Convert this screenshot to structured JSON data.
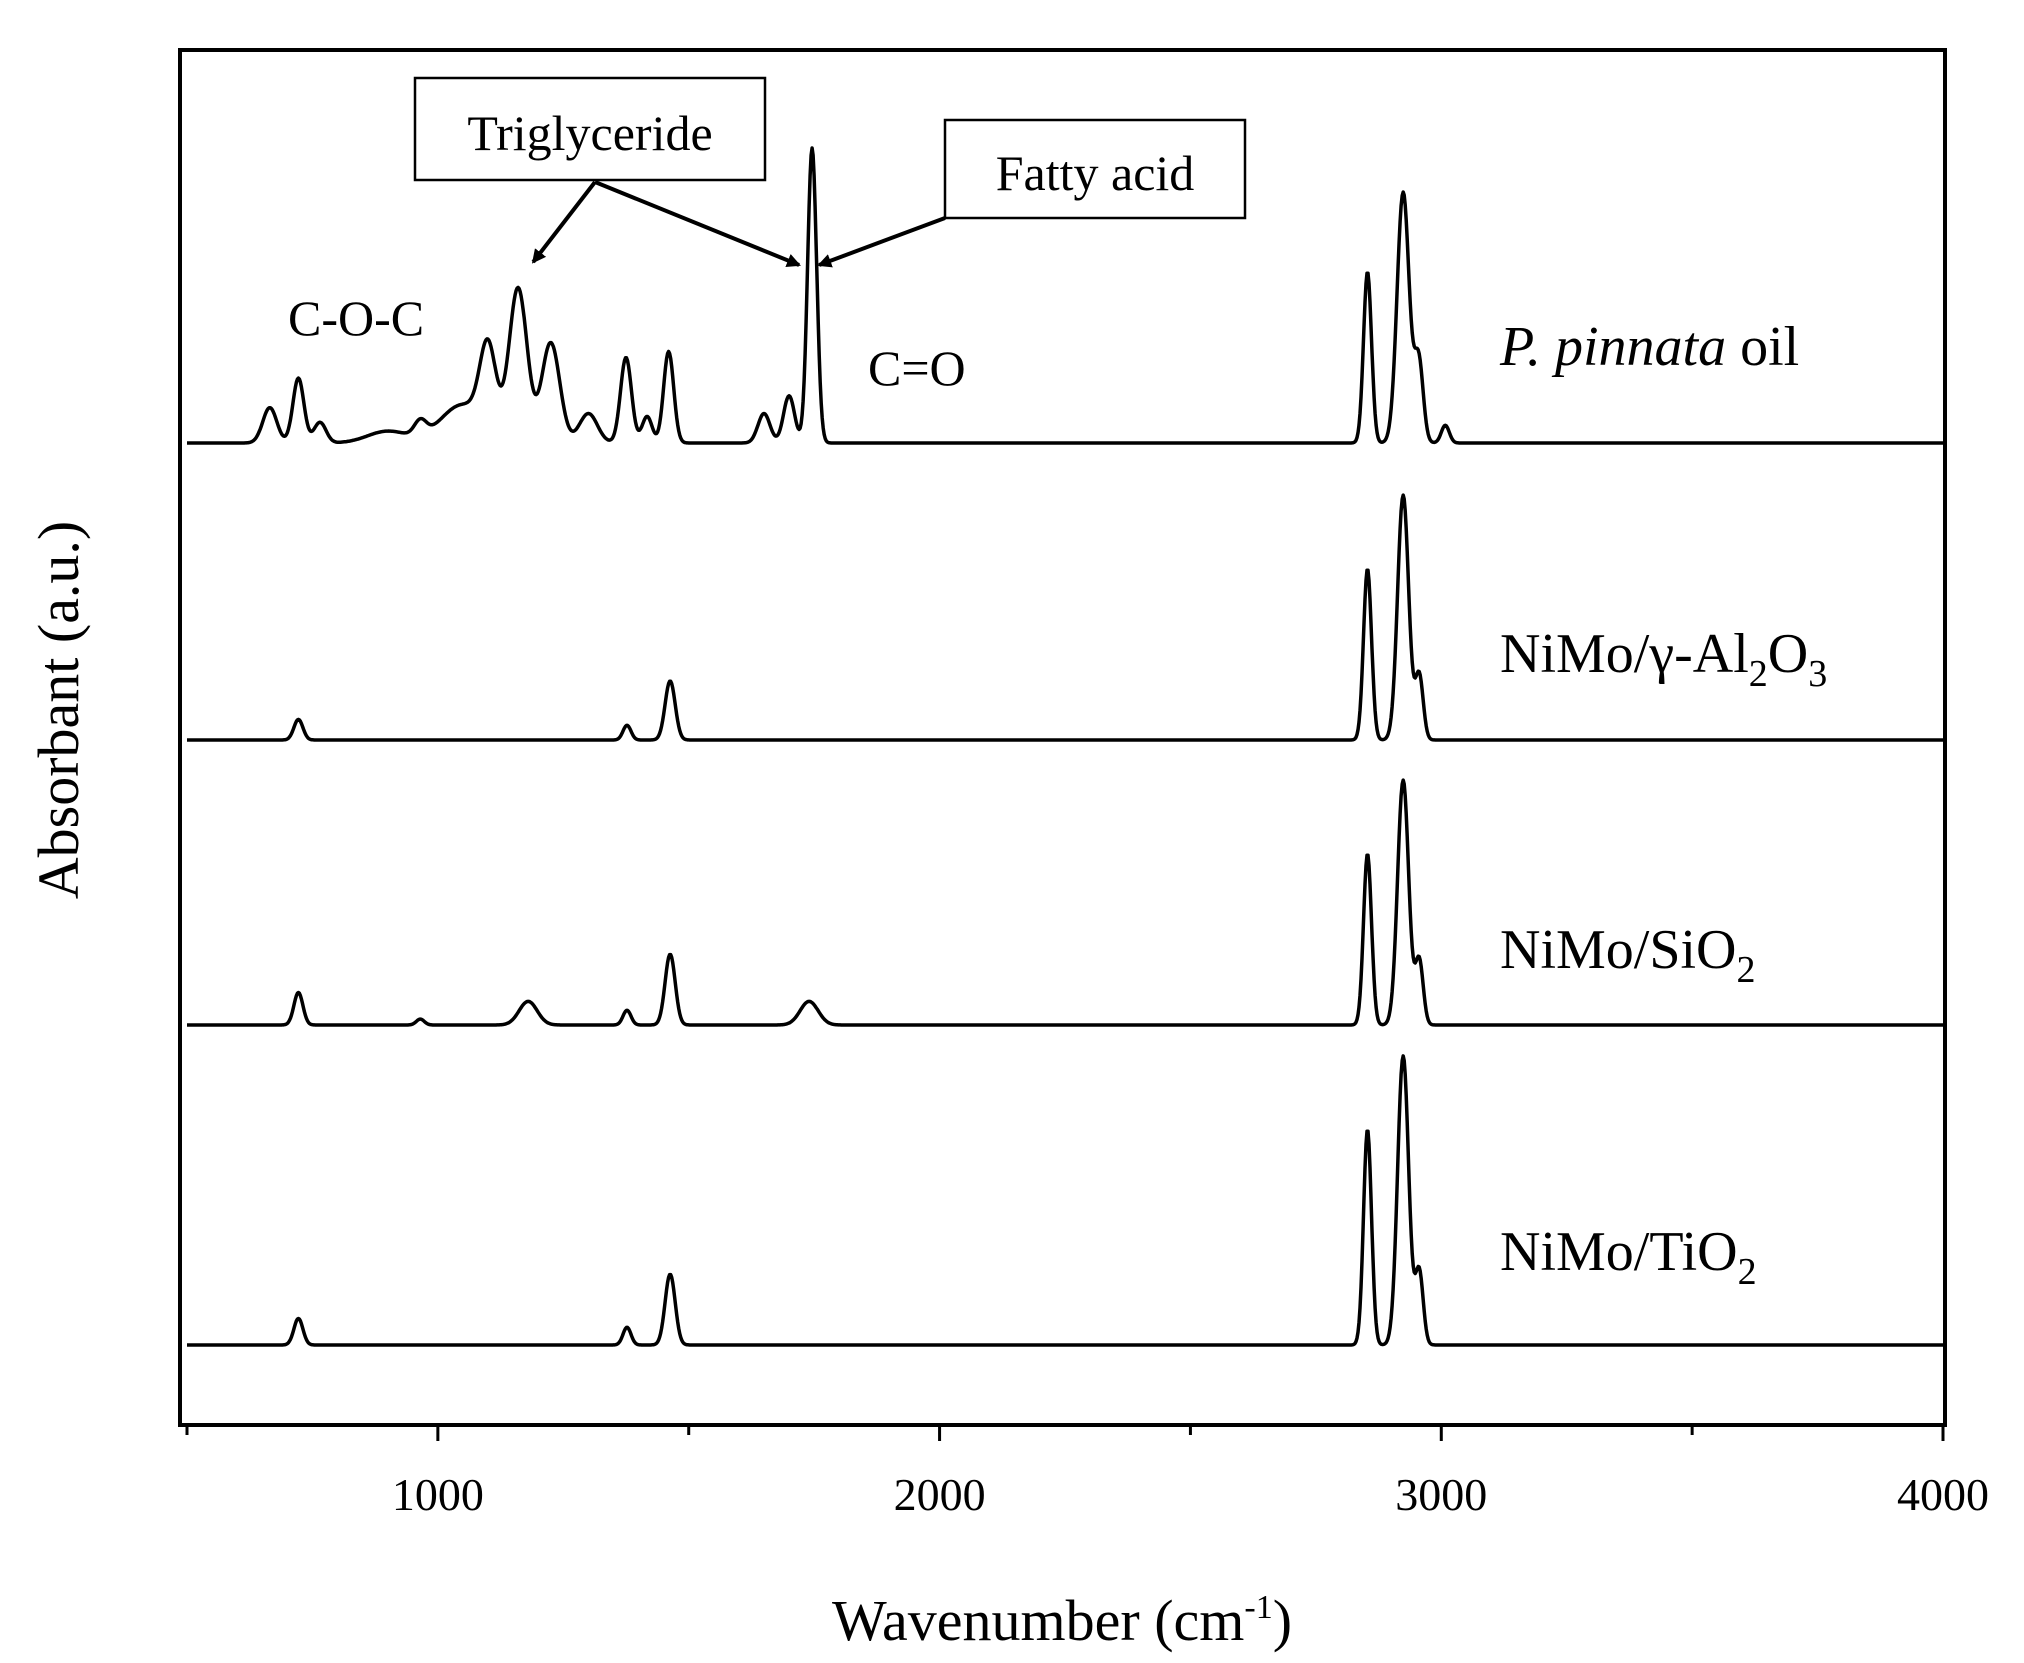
{
  "chart_data": {
    "type": "line",
    "title": "",
    "xlabel": "Wavenumber",
    "xlabel_unit_base": "cm",
    "xlabel_unit_exp": "-1",
    "ylabel": "Absorbant (a.u.)",
    "xlim": [
      500,
      4000
    ],
    "x_ticks": [
      1000,
      2000,
      3000,
      4000
    ],
    "grid": false,
    "y_ticks_labeled": false,
    "series": [
      {
        "name": "P. pinnata oil",
        "label_italic": "P. pinnata",
        "label_rest": " oil",
        "baseline": 0,
        "peaks": [
          {
            "x": 665,
            "h": 0.12,
            "w": 14
          },
          {
            "x": 722,
            "h": 0.22,
            "w": 11
          },
          {
            "x": 765,
            "h": 0.07,
            "w": 12
          },
          {
            "x": 900,
            "h": 0.04,
            "w": 40
          },
          {
            "x": 965,
            "h": 0.05,
            "w": 12
          },
          {
            "x": 1050,
            "h": 0.13,
            "w": 45
          },
          {
            "x": 1100,
            "h": 0.28,
            "w": 16
          },
          {
            "x": 1160,
            "h": 0.52,
            "w": 18
          },
          {
            "x": 1225,
            "h": 0.34,
            "w": 18
          },
          {
            "x": 1300,
            "h": 0.1,
            "w": 18
          },
          {
            "x": 1375,
            "h": 0.29,
            "w": 11
          },
          {
            "x": 1417,
            "h": 0.09,
            "w": 10
          },
          {
            "x": 1460,
            "h": 0.31,
            "w": 10
          },
          {
            "x": 1650,
            "h": 0.1,
            "w": 12
          },
          {
            "x": 1700,
            "h": 0.16,
            "w": 11
          },
          {
            "x": 1746,
            "h": 1.0,
            "w": 9
          },
          {
            "x": 2853,
            "h": 0.58,
            "w": 8
          },
          {
            "x": 2924,
            "h": 0.85,
            "w": 12
          },
          {
            "x": 2955,
            "h": 0.28,
            "w": 9
          },
          {
            "x": 3008,
            "h": 0.06,
            "w": 8
          }
        ]
      },
      {
        "name": "NiMo/γ-Al2O3",
        "label_main": "NiMo/γ-Al",
        "label_parts": [
          [
            "NiMo/γ-Al",
            ""
          ],
          [
            "2",
            "sub"
          ],
          [
            "O",
            ""
          ],
          [
            "3",
            "sub"
          ]
        ],
        "baseline": 0,
        "peaks": [
          {
            "x": 722,
            "h": 0.07,
            "w": 9
          },
          {
            "x": 1377,
            "h": 0.05,
            "w": 8
          },
          {
            "x": 1463,
            "h": 0.2,
            "w": 10
          },
          {
            "x": 2853,
            "h": 0.58,
            "w": 8
          },
          {
            "x": 2924,
            "h": 0.83,
            "w": 11
          },
          {
            "x": 2956,
            "h": 0.22,
            "w": 8
          }
        ]
      },
      {
        "name": "NiMo/SiO2",
        "label_parts": [
          [
            "NiMo/SiO",
            ""
          ],
          [
            "2",
            "sub"
          ]
        ],
        "baseline": 0,
        "peaks": [
          {
            "x": 722,
            "h": 0.11,
            "w": 9
          },
          {
            "x": 965,
            "h": 0.02,
            "w": 8
          },
          {
            "x": 1180,
            "h": 0.08,
            "w": 18
          },
          {
            "x": 1377,
            "h": 0.05,
            "w": 8
          },
          {
            "x": 1463,
            "h": 0.24,
            "w": 10
          },
          {
            "x": 1740,
            "h": 0.08,
            "w": 18
          },
          {
            "x": 2853,
            "h": 0.58,
            "w": 8
          },
          {
            "x": 2924,
            "h": 0.83,
            "w": 11
          },
          {
            "x": 2956,
            "h": 0.22,
            "w": 8
          }
        ]
      },
      {
        "name": "NiMo/TiO2",
        "label_parts": [
          [
            "NiMo/TiO",
            ""
          ],
          [
            "2",
            "sub"
          ]
        ],
        "baseline": 0,
        "peaks": [
          {
            "x": 722,
            "h": 0.09,
            "w": 9
          },
          {
            "x": 1377,
            "h": 0.06,
            "w": 8
          },
          {
            "x": 1463,
            "h": 0.24,
            "w": 10
          },
          {
            "x": 2853,
            "h": 0.73,
            "w": 8
          },
          {
            "x": 2924,
            "h": 0.98,
            "w": 11
          },
          {
            "x": 2956,
            "h": 0.25,
            "w": 8
          }
        ]
      }
    ],
    "annotations": [
      {
        "text": "Triglyceride",
        "boxed": true,
        "arrows_to_x": [
          1190,
          1720
        ]
      },
      {
        "text": "Fatty acid",
        "boxed": true,
        "arrows_to_x": [
          1760
        ]
      },
      {
        "text": "C-O-C",
        "boxed": false
      },
      {
        "text": "C=O",
        "boxed": false
      }
    ]
  }
}
